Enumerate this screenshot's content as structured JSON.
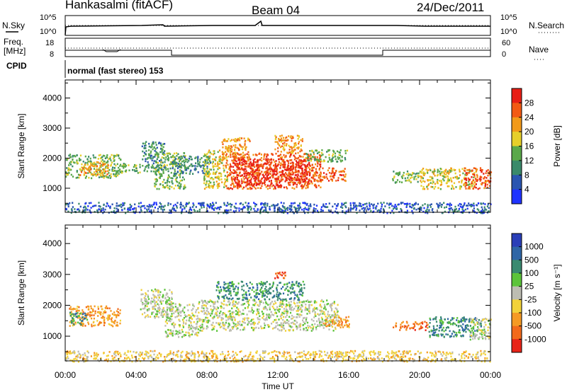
{
  "header": {
    "station": "Hankasalmi (fitACF)",
    "beam": "Beam 04",
    "date": "24/Dec/2011"
  },
  "panels": {
    "noise": {
      "left_label": "N.Sky",
      "right_label": "N.Search",
      "top_tick": "10^5",
      "bottom_tick": "10^0"
    },
    "freq": {
      "left_label_1": "Freq.",
      "left_label_2": "[MHz]",
      "left_top_tick": "18",
      "left_bottom_tick": "8",
      "right_label": "Nave",
      "right_top_tick": "60",
      "right_bottom_tick": "0"
    },
    "cpid": {
      "label": "CPID",
      "mode_text": "normal (fast stereo) 153"
    }
  },
  "chart_data": [
    {
      "type": "heatmap",
      "name": "power",
      "ylabel": "Slant Range [km]",
      "ylim": [
        200,
        4600
      ],
      "yticks": [
        "1000",
        "2000",
        "3000",
        "4000"
      ],
      "colorbar_label": "Power [dB]",
      "colorbar_ticks": [
        "4",
        "8",
        "12",
        "16",
        "20",
        "24",
        "28"
      ],
      "colorbar_colors": [
        "#1f33ff",
        "#2a55b0",
        "#3a8a6a",
        "#5aa84a",
        "#e6cf2a",
        "#f29a1a",
        "#f25a14",
        "#e81f16"
      ],
      "colorbar_range": [
        0,
        32
      ],
      "regions": [
        {
          "t0": 0.0,
          "t1": 3.1,
          "r0": 1350,
          "r1": 2150,
          "level": 3
        },
        {
          "t0": 0.8,
          "t1": 2.4,
          "r0": 1450,
          "r1": 1900,
          "level": 5
        },
        {
          "t0": 3.0,
          "t1": 4.2,
          "r0": 1500,
          "r1": 1850,
          "level": 3
        },
        {
          "t0": 4.3,
          "t1": 5.6,
          "r0": 1550,
          "r1": 2600,
          "level": 2
        },
        {
          "t0": 5.0,
          "t1": 6.8,
          "r0": 1000,
          "r1": 2200,
          "level": 3
        },
        {
          "t0": 6.0,
          "t1": 8.2,
          "r0": 1500,
          "r1": 2100,
          "level": 2
        },
        {
          "t0": 7.8,
          "t1": 9.2,
          "r0": 1000,
          "r1": 2300,
          "level": 4
        },
        {
          "t0": 8.8,
          "t1": 10.4,
          "r0": 2000,
          "r1": 2700,
          "level": 5
        },
        {
          "t0": 9.0,
          "t1": 14.4,
          "r0": 1000,
          "r1": 2200,
          "level": 6
        },
        {
          "t0": 9.5,
          "t1": 13.8,
          "r0": 1100,
          "r1": 2000,
          "level": 7
        },
        {
          "t0": 11.8,
          "t1": 13.4,
          "r0": 2200,
          "r1": 2800,
          "level": 5
        },
        {
          "t0": 14.0,
          "t1": 15.8,
          "r0": 1250,
          "r1": 1700,
          "level": 6
        },
        {
          "t0": 13.5,
          "t1": 15.9,
          "r0": 1900,
          "r1": 2300,
          "level": 3
        },
        {
          "t0": 18.4,
          "t1": 20.0,
          "r0": 1200,
          "r1": 1600,
          "level": 3
        },
        {
          "t0": 20.0,
          "t1": 23.2,
          "r0": 1000,
          "r1": 1700,
          "level": 4
        },
        {
          "t0": 22.5,
          "t1": 24.0,
          "r0": 1000,
          "r1": 1700,
          "level": 6
        },
        {
          "t0": 0.0,
          "t1": 24.0,
          "r0": 200,
          "r1": 550,
          "level": 1
        }
      ]
    },
    {
      "type": "heatmap",
      "name": "velocity",
      "ylabel": "Slant Range [km]",
      "ylim": [
        200,
        4600
      ],
      "yticks": [
        "1000",
        "2000",
        "3000",
        "4000"
      ],
      "xlabel": "Time UT",
      "xlim": [
        "00:00",
        "24:00"
      ],
      "xticks": [
        "00:00",
        "04:00",
        "08:00",
        "12:00",
        "16:00",
        "20:00",
        "00:00"
      ],
      "colorbar_label": "Velocity [m s⁻¹]",
      "colorbar_ticks": [
        "1000",
        "500",
        "100",
        "25",
        "-25",
        "-100",
        "-500",
        "-1000"
      ],
      "colorbar_colors": [
        "#2a3fb8",
        "#2f66a6",
        "#3a8a70",
        "#5cc43a",
        "#bdbdb2",
        "#f2d23a",
        "#f59a24",
        "#f26a1c",
        "#e82418"
      ],
      "regions": [
        {
          "t0": 0.2,
          "t1": 3.1,
          "r0": 1350,
          "r1": 2000,
          "level": 6
        },
        {
          "t0": 0.2,
          "t1": 1.2,
          "r0": 1400,
          "r1": 1800,
          "level": 2
        },
        {
          "t0": 4.2,
          "t1": 6.0,
          "r0": 1600,
          "r1": 2550,
          "level": 4
        },
        {
          "t0": 5.6,
          "t1": 7.5,
          "r0": 1000,
          "r1": 2100,
          "level": 4
        },
        {
          "t0": 7.5,
          "t1": 15.4,
          "r0": 1200,
          "r1": 2200,
          "level": 4
        },
        {
          "t0": 8.5,
          "t1": 13.5,
          "r0": 2200,
          "r1": 2800,
          "level": 2
        },
        {
          "t0": 11.8,
          "t1": 12.4,
          "r0": 2900,
          "r1": 3100,
          "level": 7
        },
        {
          "t0": 14.5,
          "t1": 16.0,
          "r0": 1300,
          "r1": 1700,
          "level": 6
        },
        {
          "t0": 18.4,
          "t1": 20.5,
          "r0": 1200,
          "r1": 1500,
          "level": 7
        },
        {
          "t0": 20.5,
          "t1": 23.5,
          "r0": 1000,
          "r1": 1650,
          "level": 2
        },
        {
          "t0": 22.8,
          "t1": 24.0,
          "r0": 900,
          "r1": 1600,
          "level": 4
        },
        {
          "t0": 0.0,
          "t1": 24.0,
          "r0": 200,
          "r1": 550,
          "level": 5
        }
      ]
    }
  ]
}
